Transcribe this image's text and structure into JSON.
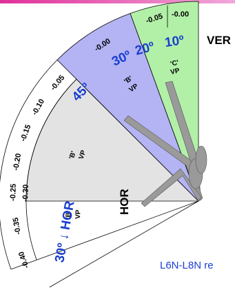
{
  "labels": {
    "top_ticks": [
      "-0.05",
      "-0.00",
      "-0.00"
    ],
    "left_ticks": [
      "-0.05",
      "-0.10",
      "-0.15",
      "-0.20",
      "-0.25",
      "-0.30",
      "-0.35",
      "-0.40"
    ],
    "ver": "VER",
    "hor_center": "HOR",
    "angles": [
      "30º",
      "20º",
      "10º",
      "45º"
    ],
    "vp": [
      "'C'",
      "VP",
      "'B'",
      "VP",
      "'B'",
      "VP",
      "'B'",
      "VP"
    ],
    "bottom_angle": "30º ↓ HOR",
    "note": "L6N-L8N re"
  }
}
